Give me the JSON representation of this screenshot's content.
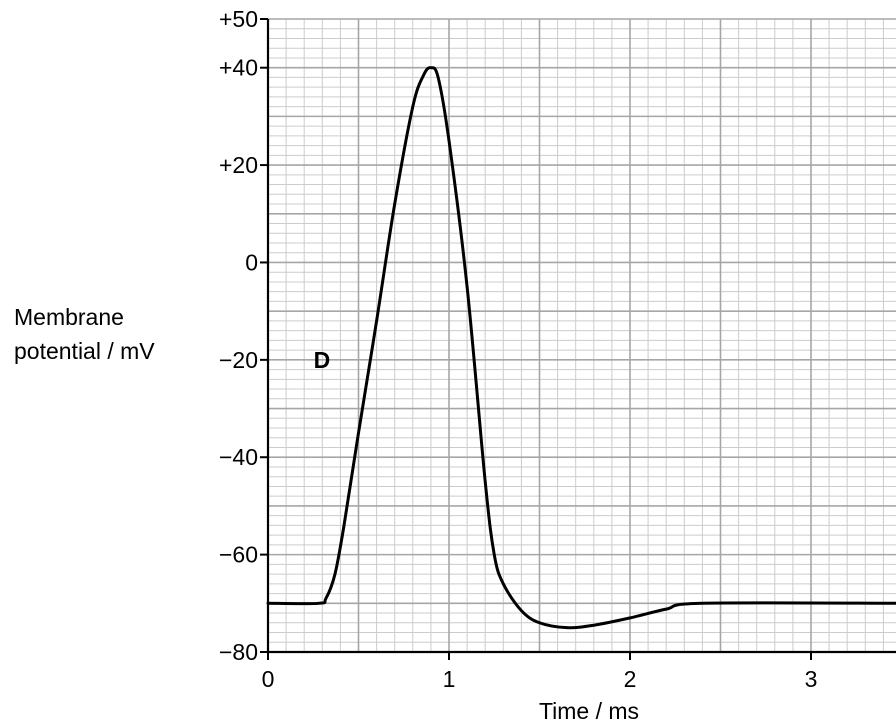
{
  "chart_data": {
    "type": "line",
    "xlabel": "Time / ms",
    "ylabel": [
      "Membrane",
      "potential / mV"
    ],
    "xlim": [
      0,
      3.5
    ],
    "ylim": [
      -80,
      50
    ],
    "x_ticks": [
      {
        "value": 0,
        "label": "0"
      },
      {
        "value": 1,
        "label": "1"
      },
      {
        "value": 2,
        "label": "2"
      },
      {
        "value": 3,
        "label": "3"
      }
    ],
    "y_ticks": [
      {
        "value": 50,
        "label": "+50"
      },
      {
        "value": 40,
        "label": "+40"
      },
      {
        "value": 20,
        "label": "+20"
      },
      {
        "value": 0,
        "label": "0"
      },
      {
        "value": -20,
        "label": "−20"
      },
      {
        "value": -40,
        "label": "−40"
      },
      {
        "value": -60,
        "label": "−60"
      },
      {
        "value": -80,
        "label": "−80"
      }
    ],
    "grid": true,
    "series": [
      {
        "points": [
          [
            0,
            -70
          ],
          [
            0.28,
            -70
          ],
          [
            0.32,
            -69
          ],
          [
            0.37,
            -64
          ],
          [
            0.42,
            -54
          ],
          [
            0.5,
            -35
          ],
          [
            0.6,
            -12
          ],
          [
            0.7,
            12
          ],
          [
            0.8,
            32
          ],
          [
            0.86,
            38.5
          ],
          [
            0.9,
            40
          ],
          [
            0.94,
            38
          ],
          [
            1.0,
            25
          ],
          [
            1.1,
            -5
          ],
          [
            1.2,
            -45
          ],
          [
            1.25,
            -60
          ],
          [
            1.3,
            -66
          ],
          [
            1.4,
            -71.5
          ],
          [
            1.5,
            -74
          ],
          [
            1.65,
            -75
          ],
          [
            1.8,
            -74.5
          ],
          [
            2.0,
            -73
          ],
          [
            2.2,
            -71.2
          ],
          [
            2.4,
            -70
          ],
          [
            3.5,
            -70
          ]
        ]
      }
    ],
    "annotations": [
      {
        "text": "D",
        "x": 0.48,
        "y": -20
      }
    ]
  }
}
